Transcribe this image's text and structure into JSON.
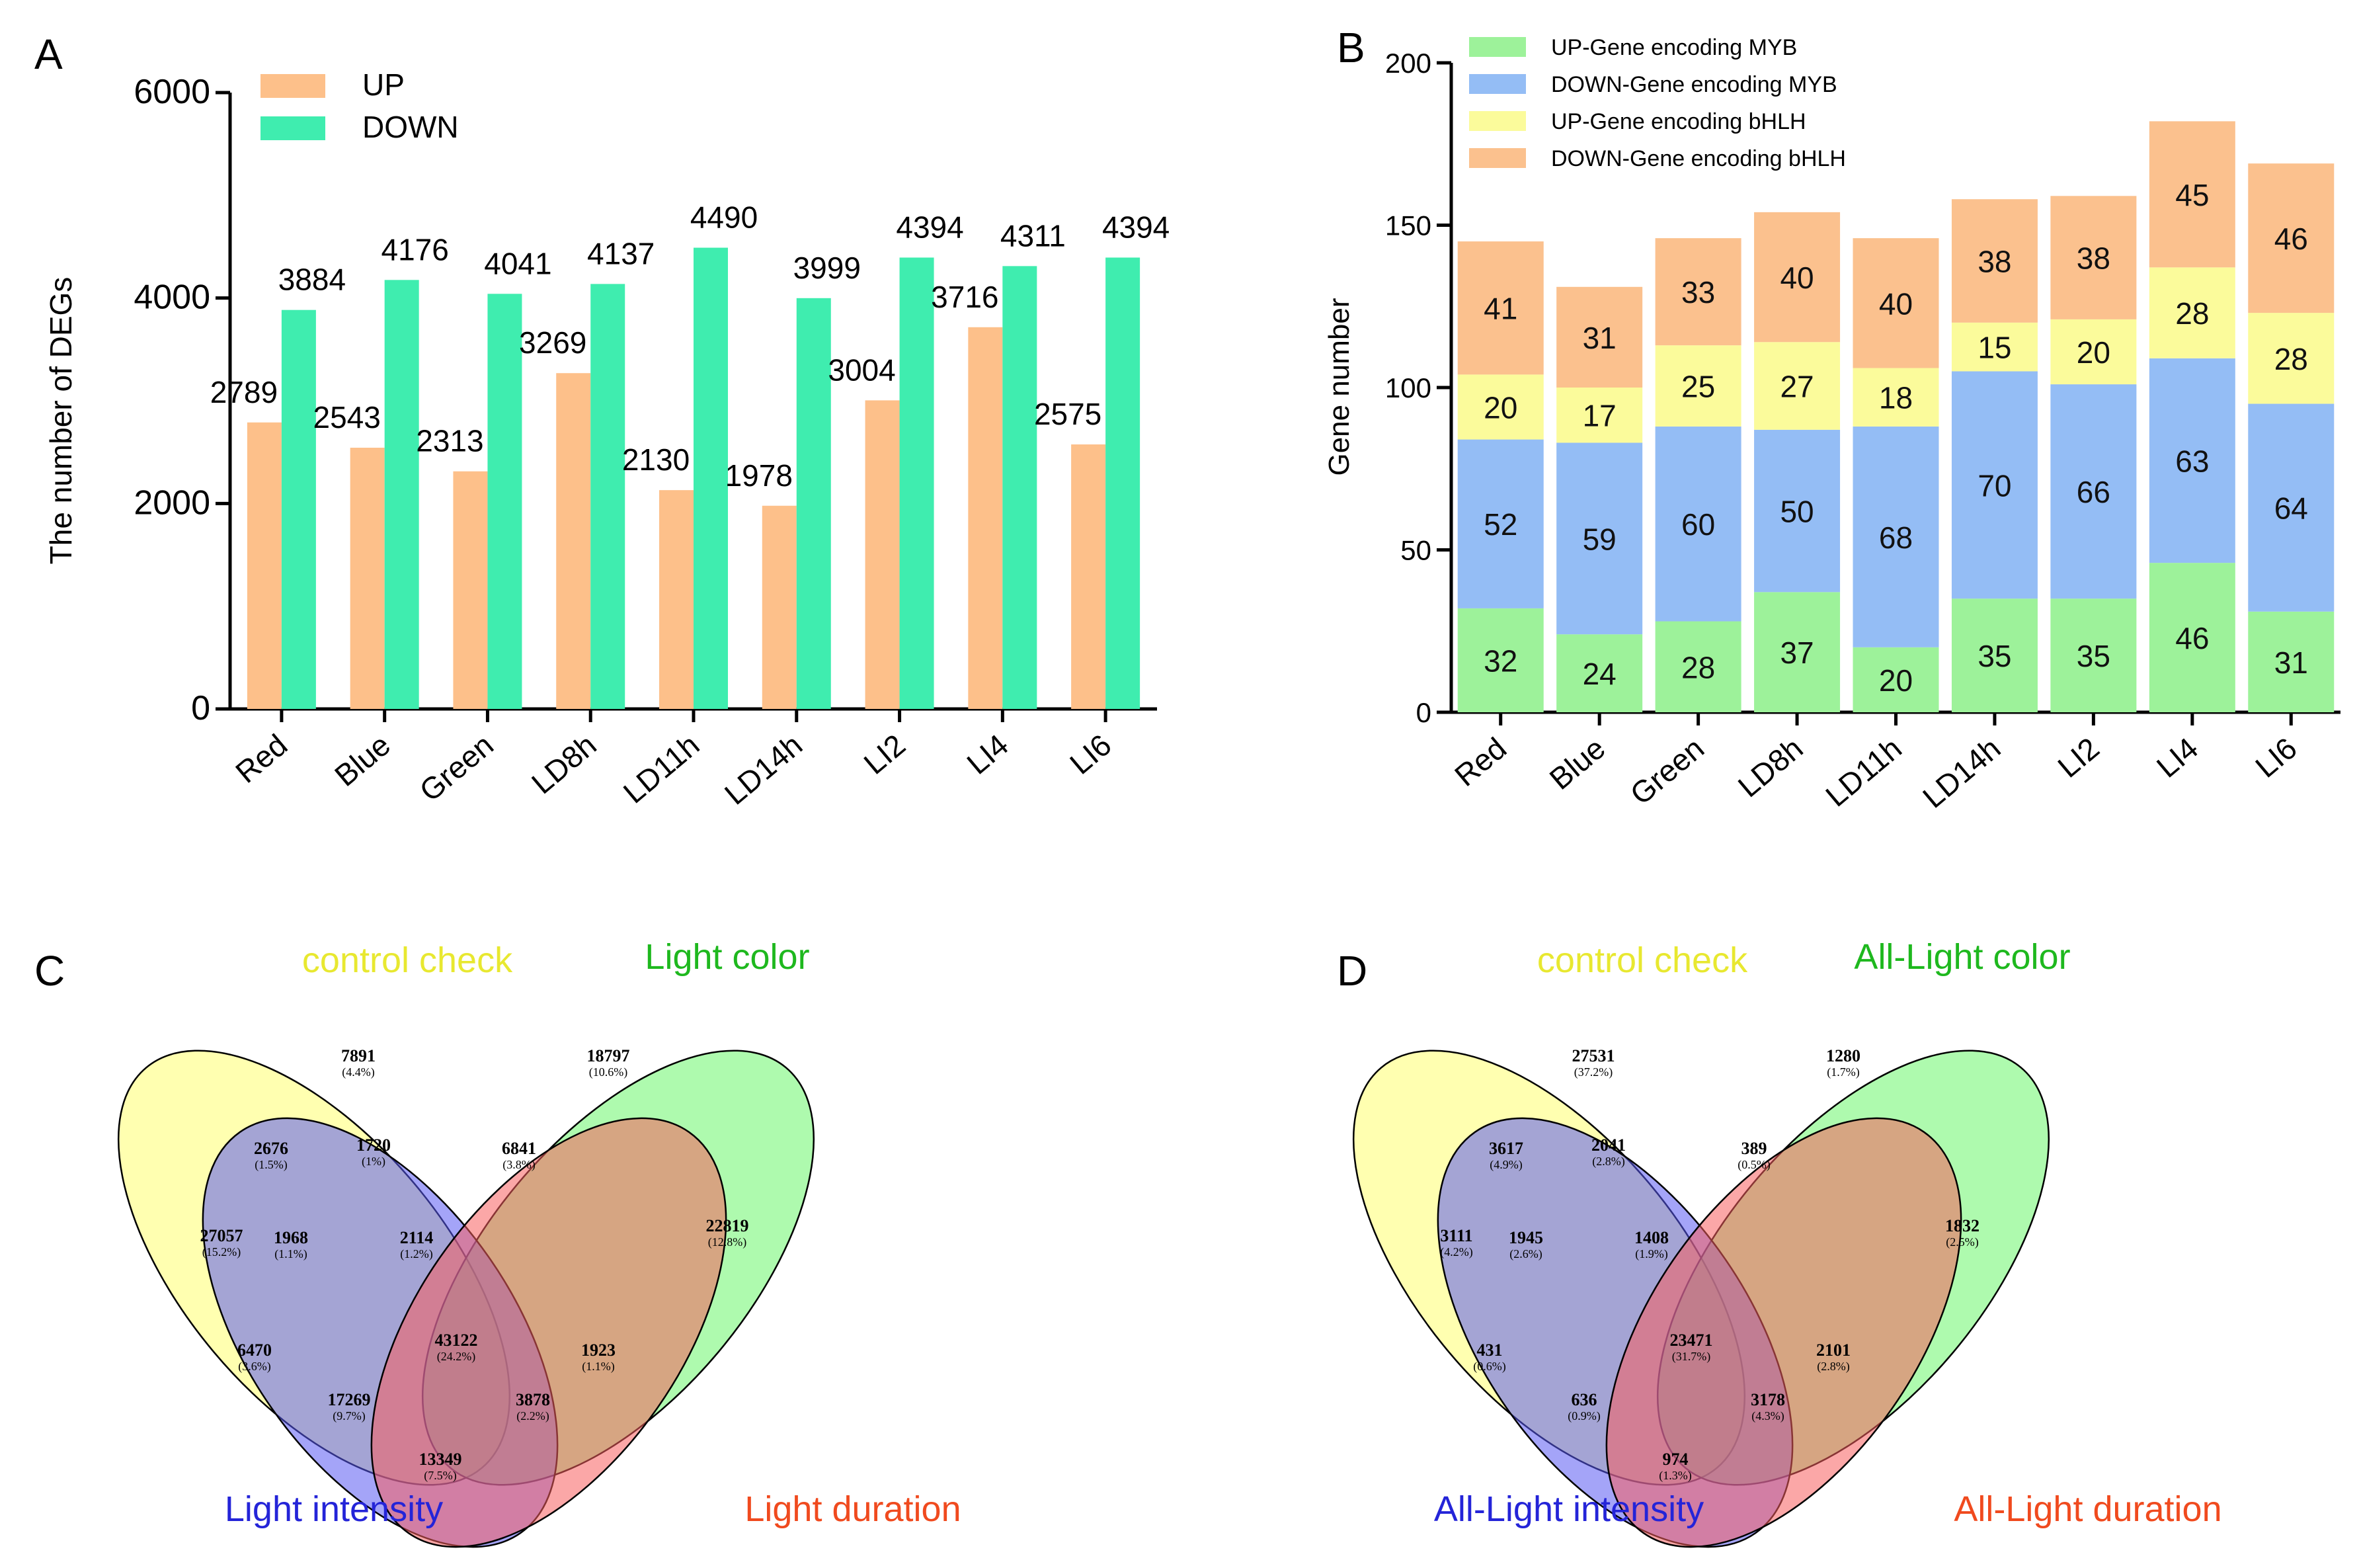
{
  "panels": {
    "a": {
      "letter": "A"
    },
    "b": {
      "letter": "B"
    },
    "c": {
      "letter": "C"
    },
    "d": {
      "letter": "D"
    }
  },
  "chart_data": [
    {
      "id": "A",
      "type": "bar",
      "title": "",
      "xlabel": "",
      "ylabel": "The number of DEGs",
      "ylim": [
        0,
        6000
      ],
      "yticks": [
        0,
        2000,
        4000,
        6000
      ],
      "categories": [
        "Red",
        "Blue",
        "Green",
        "LD8h",
        "LD11h",
        "LD14h",
        "LI2",
        "LI4",
        "LI6"
      ],
      "series": [
        {
          "name": "UP",
          "color": "#FDC08A",
          "values": [
            2789,
            2543,
            2313,
            3269,
            2130,
            1978,
            3004,
            3716,
            2575
          ]
        },
        {
          "name": "DOWN",
          "color": "#3FEDAF",
          "values": [
            3884,
            4176,
            4041,
            4137,
            4490,
            3999,
            4394,
            4311,
            4394
          ]
        }
      ],
      "legend_position": "top-left"
    },
    {
      "id": "B",
      "type": "bar",
      "stacked": true,
      "title": "",
      "xlabel": "",
      "ylabel": "Gene number",
      "ylim": [
        0,
        200
      ],
      "yticks": [
        0,
        50,
        100,
        150,
        200
      ],
      "categories": [
        "Red",
        "Blue",
        "Green",
        "LD8h",
        "LD11h",
        "LD14h",
        "LI2",
        "LI4",
        "LI6"
      ],
      "series": [
        {
          "name": "UP-Gene encoding MYB",
          "color": "#9DF29A",
          "values": [
            32,
            24,
            28,
            37,
            20,
            35,
            35,
            46,
            31
          ]
        },
        {
          "name": "DOWN-Gene encoding MYB",
          "color": "#94BDF5",
          "values": [
            52,
            59,
            60,
            50,
            68,
            70,
            66,
            63,
            64
          ]
        },
        {
          "name": "UP-Gene encoding bHLH",
          "color": "#FBFB9B",
          "values": [
            20,
            17,
            25,
            27,
            18,
            15,
            20,
            28,
            28
          ]
        },
        {
          "name": "DOWN-Gene encoding bHLH",
          "color": "#FBC18E",
          "values": [
            41,
            31,
            33,
            40,
            40,
            38,
            38,
            45,
            46
          ]
        }
      ],
      "legend_position": "top-left"
    },
    {
      "id": "C",
      "type": "venn",
      "sets": [
        {
          "name": "control check",
          "color": "#D8D830"
        },
        {
          "name": "Light color",
          "color": "#14B814"
        },
        {
          "name": "Light intensity",
          "color": "#1A1AD0"
        },
        {
          "name": "Light duration",
          "color": "#F03A14"
        }
      ],
      "regions": [
        {
          "num": "7891",
          "pct": "(4.4%)"
        },
        {
          "num": "18797",
          "pct": "(10.6%)"
        },
        {
          "num": "27057",
          "pct": "(15.2%)"
        },
        {
          "num": "22819",
          "pct": "(12.8%)"
        },
        {
          "num": "2676",
          "pct": "(1.5%)"
        },
        {
          "num": "1720",
          "pct": "(1%)"
        },
        {
          "num": "6841",
          "pct": "(3.8%)"
        },
        {
          "num": "1968",
          "pct": "(1.1%)"
        },
        {
          "num": "2114",
          "pct": "(1.2%)"
        },
        {
          "num": "6470",
          "pct": "(3.6%)"
        },
        {
          "num": "43122",
          "pct": "(24.2%)"
        },
        {
          "num": "1923",
          "pct": "(1.1%)"
        },
        {
          "num": "17269",
          "pct": "(9.7%)"
        },
        {
          "num": "3878",
          "pct": "(2.2%)"
        },
        {
          "num": "13349",
          "pct": "(7.5%)"
        }
      ]
    },
    {
      "id": "D",
      "type": "venn",
      "sets": [
        {
          "name": "control check",
          "color": "#D8D830"
        },
        {
          "name": "All-Light color",
          "color": "#14B814"
        },
        {
          "name": "All-Light intensity",
          "color": "#1A1AD0"
        },
        {
          "name": "All-Light duration",
          "color": "#F03A14"
        }
      ],
      "regions": [
        {
          "num": "27531",
          "pct": "(37.2%)"
        },
        {
          "num": "1280",
          "pct": "(1.7%)"
        },
        {
          "num": "3111",
          "pct": "(4.2%)"
        },
        {
          "num": "1832",
          "pct": "(2.5%)"
        },
        {
          "num": "3617",
          "pct": "(4.9%)"
        },
        {
          "num": "2041",
          "pct": "(2.8%)"
        },
        {
          "num": "389",
          "pct": "(0.5%)"
        },
        {
          "num": "1945",
          "pct": "(2.6%)"
        },
        {
          "num": "1408",
          "pct": "(1.9%)"
        },
        {
          "num": "431",
          "pct": "(0.6%)"
        },
        {
          "num": "23471",
          "pct": "(31.7%)"
        },
        {
          "num": "2101",
          "pct": "(2.8%)"
        },
        {
          "num": "636",
          "pct": "(0.9%)"
        },
        {
          "num": "3178",
          "pct": "(4.3%)"
        },
        {
          "num": "974",
          "pct": "(1.3%)"
        }
      ]
    }
  ]
}
